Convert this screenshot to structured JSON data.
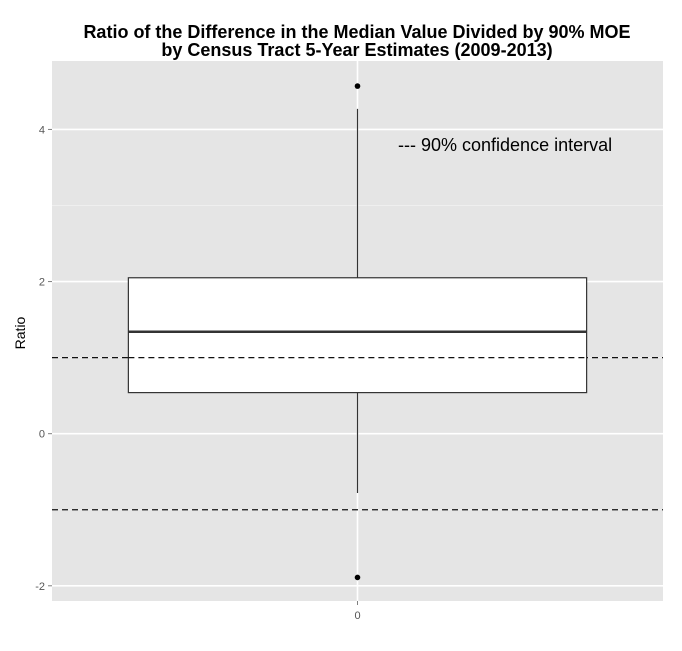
{
  "chart_data": {
    "type": "box",
    "title": [
      "Ratio of the Difference in the Median Value Divided by 90% MOE",
      "by Census Tract 5-Year Estimates (2009-2013)"
    ],
    "xlabel": "",
    "ylabel": "Ratio",
    "categories": [
      "0"
    ],
    "ylim": [
      -2.2,
      4.9
    ],
    "y_ticks": [
      -2,
      0,
      2,
      4
    ],
    "y_tick_labels": [
      "-2",
      "0",
      "2",
      "4"
    ],
    "box": {
      "category": "0",
      "whisker_low": -0.78,
      "q1": 0.54,
      "median": 1.34,
      "q3": 2.05,
      "whisker_high": 4.27
    },
    "outliers": [
      4.57,
      -1.89
    ],
    "reference_lines": [
      1,
      -1
    ],
    "annotation": "--- 90% confidence interval",
    "grid": true,
    "background": "#e5e5e5",
    "grid_color": "#ffffff",
    "box_fill": "#ffffff",
    "line_color": "#333333"
  }
}
